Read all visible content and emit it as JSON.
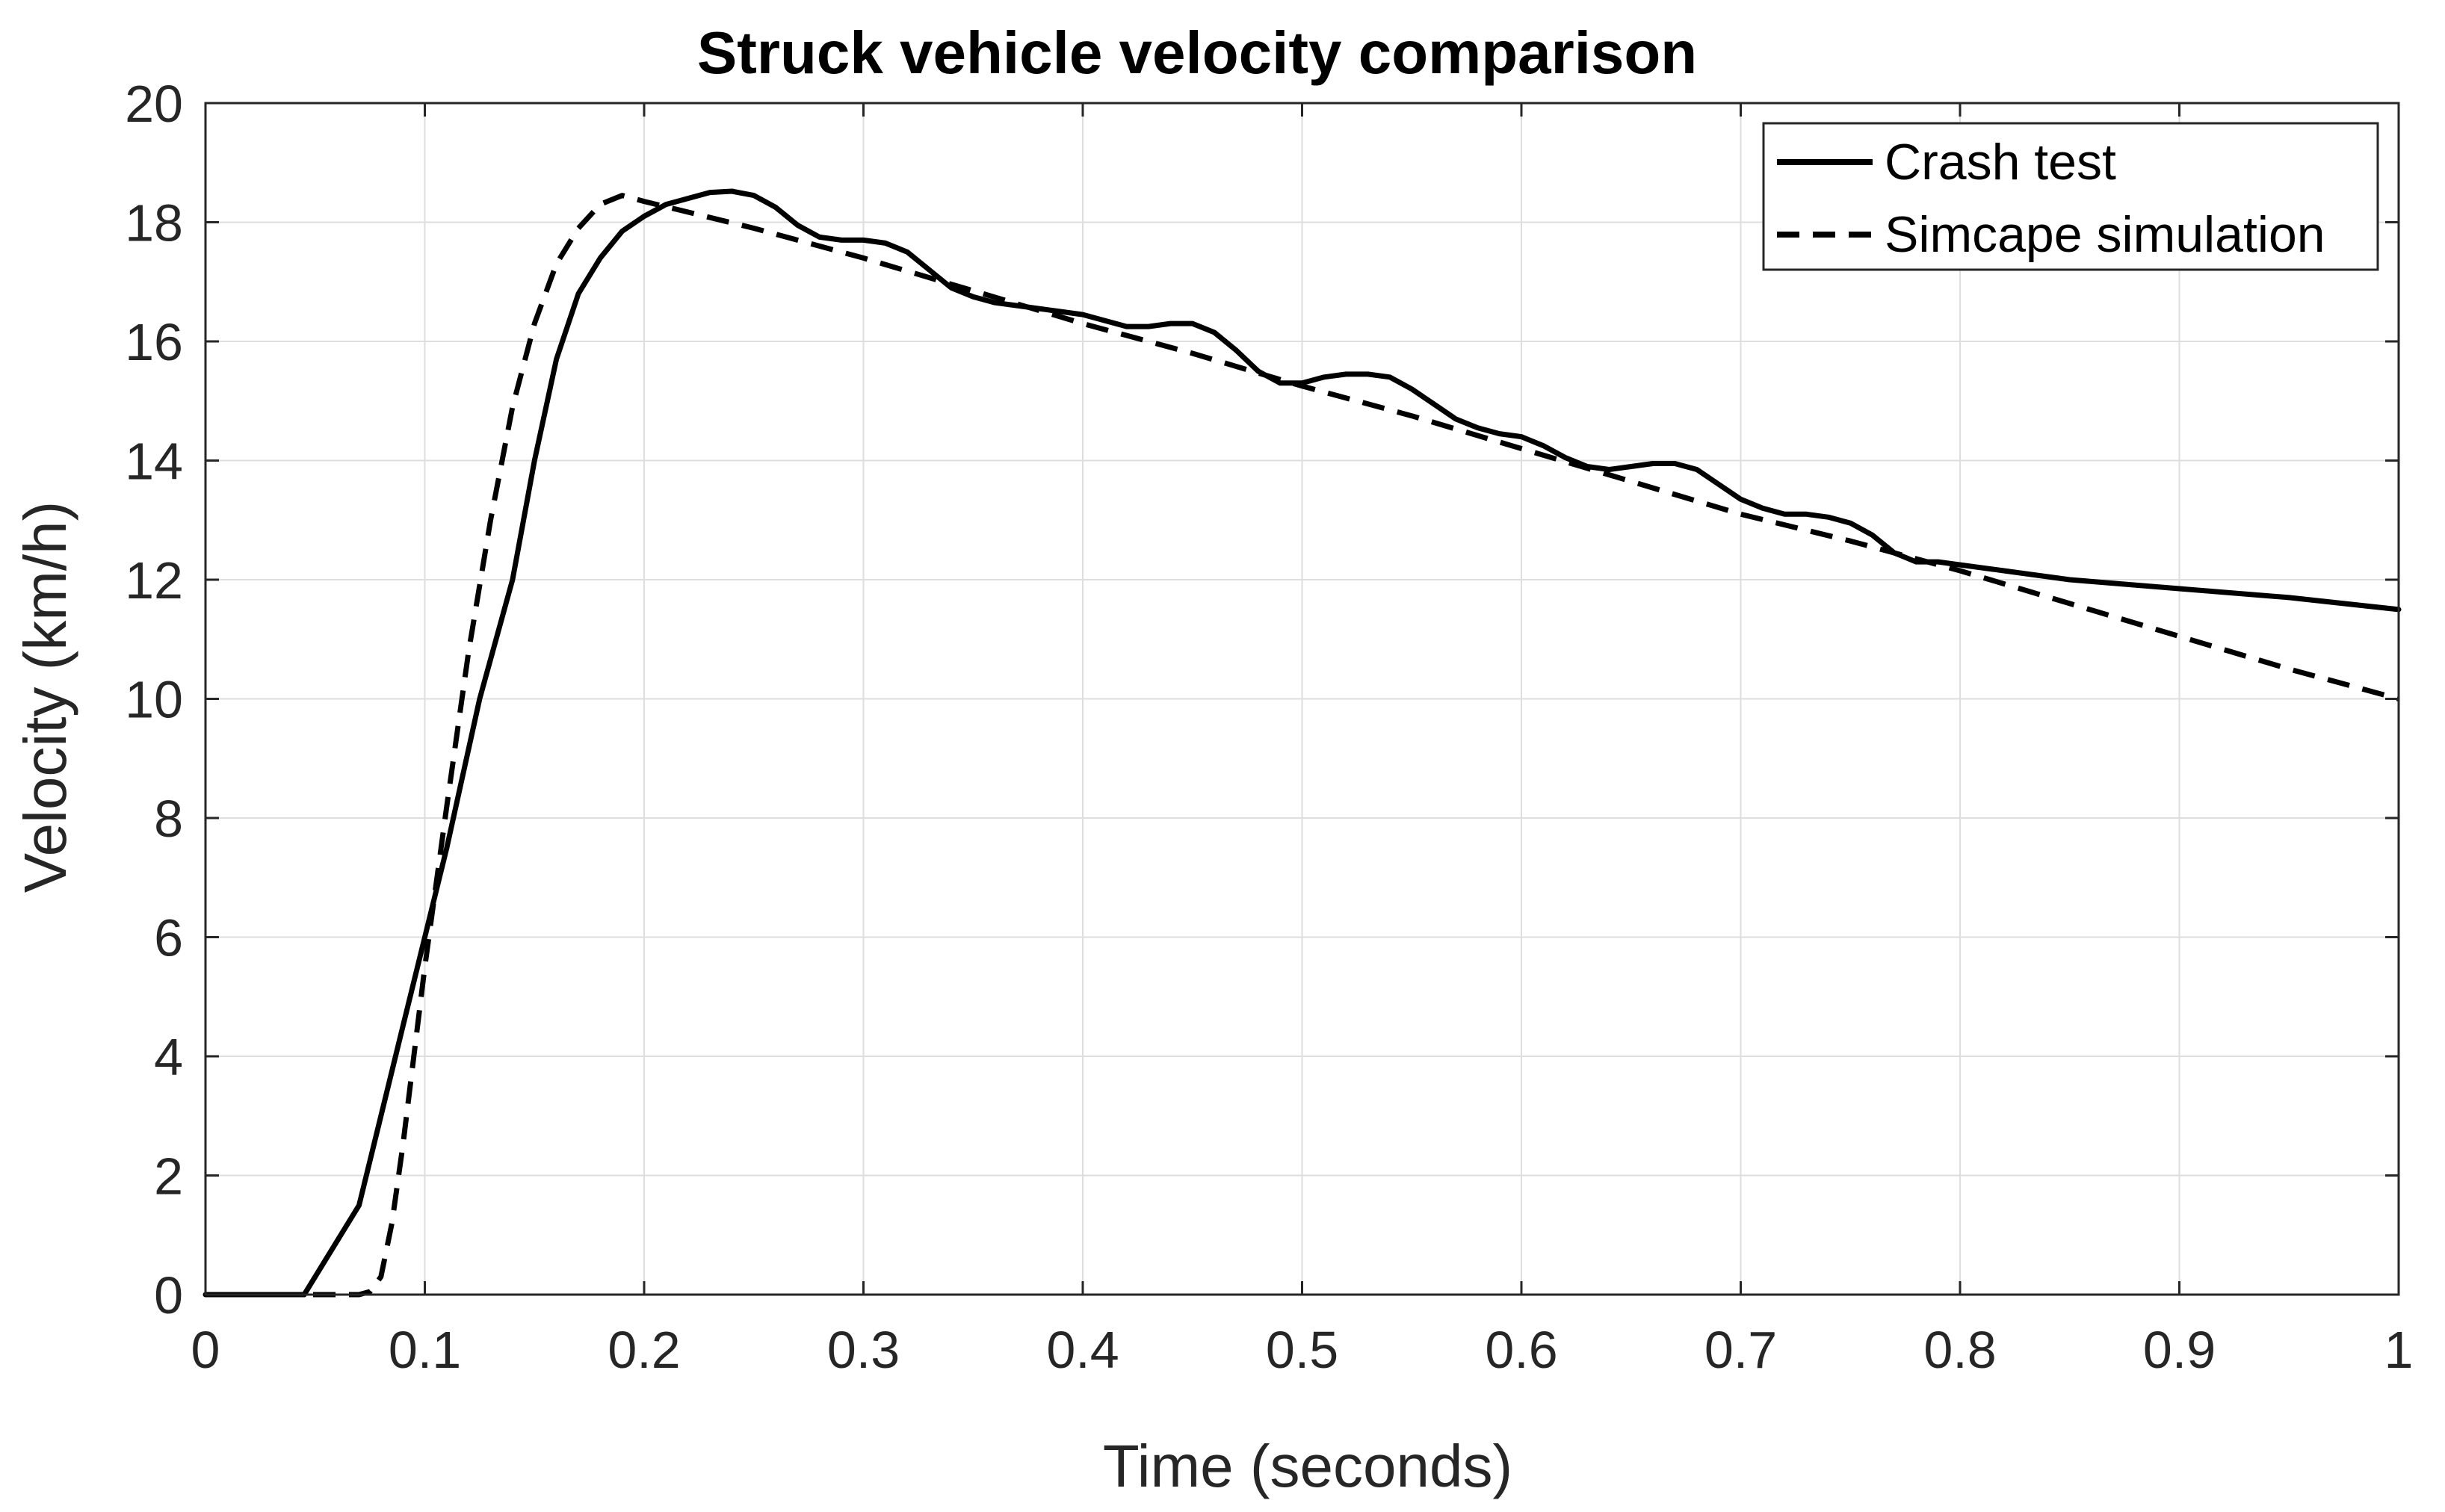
{
  "chart_data": {
    "type": "line",
    "title": "Struck vehicle velocity comparison",
    "xlabel": "Time (seconds)",
    "ylabel": "Velocity (km/h)",
    "xlim": [
      0,
      1
    ],
    "ylim": [
      0,
      20
    ],
    "grid": true,
    "legend_position": "top-right",
    "x_ticks": [
      "0",
      "0.1",
      "0.2",
      "0.3",
      "0.4",
      "0.5",
      "0.6",
      "0.7",
      "0.8",
      "0.9",
      "1"
    ],
    "y_ticks": [
      "0",
      "2",
      "4",
      "6",
      "8",
      "10",
      "12",
      "14",
      "16",
      "18",
      "20"
    ],
    "series": [
      {
        "name": "Crash test",
        "style": "solid",
        "color": "#000000",
        "x": [
          0,
          0.045,
          0.07,
          0.09,
          0.11,
          0.125,
          0.14,
          0.15,
          0.16,
          0.17,
          0.18,
          0.19,
          0.2,
          0.21,
          0.22,
          0.23,
          0.24,
          0.25,
          0.26,
          0.27,
          0.28,
          0.29,
          0.3,
          0.31,
          0.32,
          0.33,
          0.34,
          0.35,
          0.36,
          0.37,
          0.38,
          0.39,
          0.4,
          0.41,
          0.42,
          0.43,
          0.44,
          0.45,
          0.46,
          0.47,
          0.48,
          0.49,
          0.5,
          0.51,
          0.52,
          0.53,
          0.54,
          0.55,
          0.56,
          0.57,
          0.58,
          0.59,
          0.6,
          0.61,
          0.62,
          0.63,
          0.64,
          0.65,
          0.66,
          0.67,
          0.68,
          0.69,
          0.7,
          0.71,
          0.72,
          0.73,
          0.74,
          0.75,
          0.76,
          0.77,
          0.78,
          0.79,
          0.8,
          0.82,
          0.85,
          0.9,
          0.95,
          1.0
        ],
        "values": [
          0,
          0,
          1.5,
          4.5,
          7.5,
          10.0,
          12.0,
          14.0,
          15.7,
          16.8,
          17.4,
          17.85,
          18.1,
          18.3,
          18.4,
          18.5,
          18.52,
          18.45,
          18.25,
          17.95,
          17.75,
          17.7,
          17.7,
          17.65,
          17.5,
          17.2,
          16.9,
          16.75,
          16.65,
          16.6,
          16.55,
          16.5,
          16.45,
          16.35,
          16.25,
          16.25,
          16.3,
          16.3,
          16.15,
          15.85,
          15.5,
          15.3,
          15.3,
          15.4,
          15.45,
          15.45,
          15.4,
          15.2,
          14.95,
          14.7,
          14.55,
          14.45,
          14.4,
          14.25,
          14.05,
          13.9,
          13.85,
          13.9,
          13.95,
          13.95,
          13.85,
          13.6,
          13.35,
          13.2,
          13.1,
          13.1,
          13.05,
          12.95,
          12.75,
          12.45,
          12.3,
          12.3,
          12.25,
          12.15,
          12.0,
          11.85,
          11.7,
          11.5
        ]
      },
      {
        "name": "Simcape simulation",
        "style": "dashed",
        "color": "#000000",
        "x": [
          0,
          0.07,
          0.075,
          0.08,
          0.085,
          0.09,
          0.095,
          0.1,
          0.11,
          0.12,
          0.13,
          0.14,
          0.15,
          0.16,
          0.17,
          0.18,
          0.19,
          0.2,
          0.25,
          0.3,
          0.35,
          0.4,
          0.45,
          0.5,
          0.55,
          0.6,
          0.65,
          0.7,
          0.75,
          0.8,
          0.85,
          0.9,
          0.95,
          1.0
        ],
        "values": [
          0,
          0,
          0.05,
          0.3,
          1.2,
          2.5,
          4.0,
          5.5,
          8.2,
          10.8,
          13.0,
          14.9,
          16.3,
          17.3,
          17.9,
          18.3,
          18.45,
          18.35,
          17.9,
          17.4,
          16.85,
          16.3,
          15.8,
          15.25,
          14.75,
          14.2,
          13.65,
          13.1,
          12.65,
          12.15,
          11.6,
          11.05,
          10.5,
          10.0
        ]
      }
    ]
  }
}
